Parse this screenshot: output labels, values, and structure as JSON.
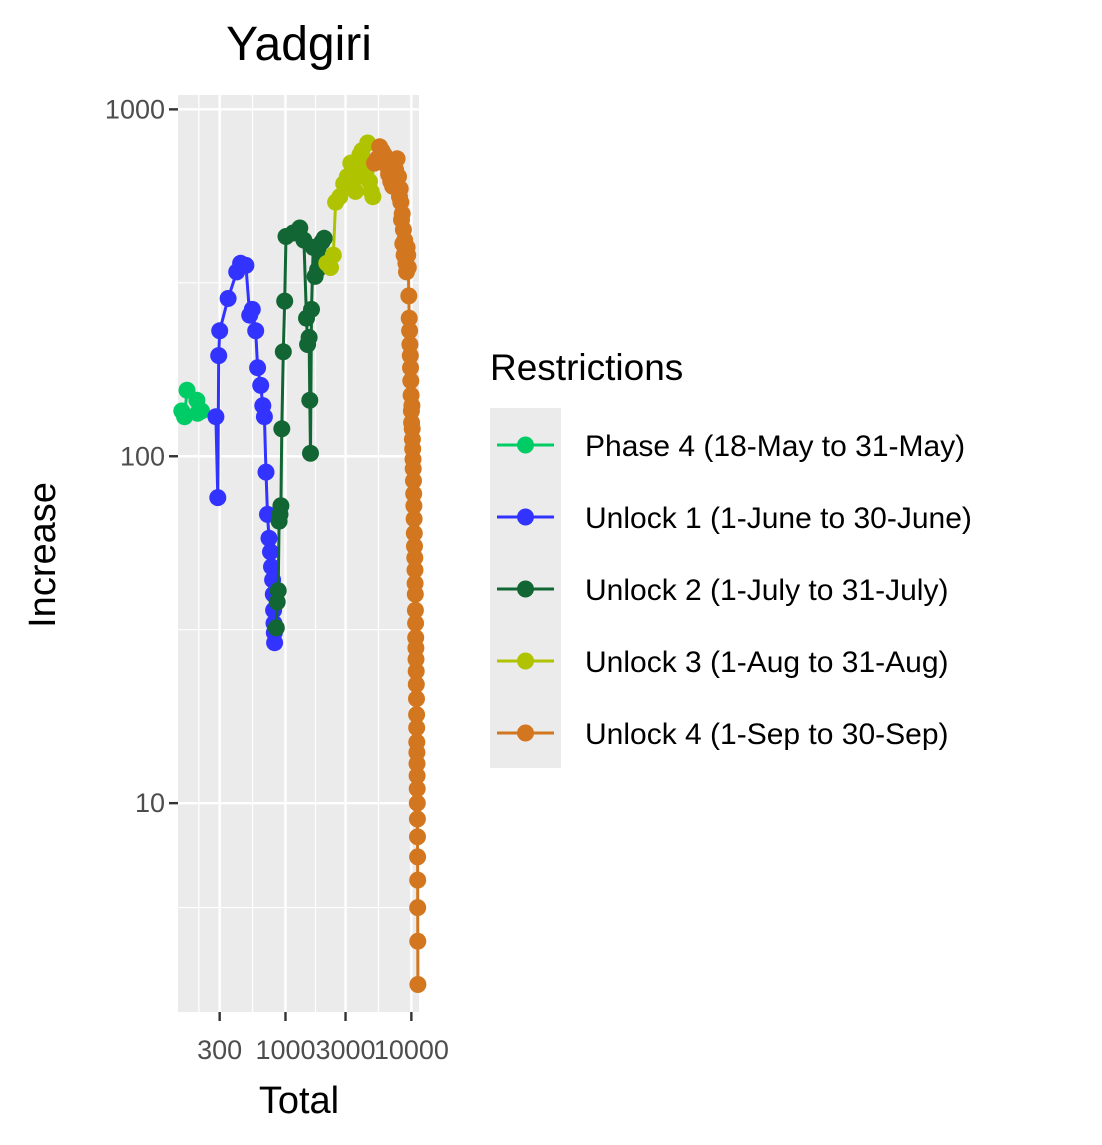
{
  "chart_data": {
    "type": "line",
    "title": "Yadgiri",
    "xlabel": "Total",
    "ylabel": "Increase",
    "x_scale": "log10",
    "y_scale": "log10",
    "xlim": [
      140,
      11500
    ],
    "ylim": [
      2.5,
      1100
    ],
    "x_ticks": [
      300,
      1000,
      3000,
      10000
    ],
    "x_tick_labels": [
      "300",
      "1000",
      "3000",
      "10000"
    ],
    "y_ticks": [
      10,
      100,
      1000
    ],
    "y_tick_labels": [
      "10",
      "100",
      "1000"
    ],
    "grid": true,
    "legend": {
      "title": "Restrictions",
      "position": "right"
    },
    "series": [
      {
        "name": "Phase 4 (18-May to 31-May)",
        "color": "#00CC66",
        "points": [
          [
            150,
            135
          ],
          [
            158,
            130
          ],
          [
            165,
            155
          ],
          [
            198,
            145
          ],
          [
            200,
            133
          ],
          [
            215,
            135
          ]
        ]
      },
      {
        "name": "Unlock 1 (1-June to 30-June)",
        "color": "#3333FF",
        "points": [
          [
            280,
            130
          ],
          [
            290,
            76
          ],
          [
            295,
            195
          ],
          [
            300,
            230
          ],
          [
            350,
            285
          ],
          [
            410,
            340
          ],
          [
            440,
            360
          ],
          [
            485,
            355
          ],
          [
            520,
            255
          ],
          [
            545,
            265
          ],
          [
            580,
            230
          ],
          [
            600,
            180
          ],
          [
            635,
            160
          ],
          [
            660,
            140
          ],
          [
            680,
            130
          ],
          [
            700,
            90
          ],
          [
            720,
            68
          ],
          [
            740,
            58
          ],
          [
            760,
            53
          ],
          [
            775,
            48
          ],
          [
            790,
            44
          ],
          [
            800,
            40
          ],
          [
            805,
            36
          ],
          [
            810,
            33
          ],
          [
            815,
            31
          ],
          [
            820,
            29
          ]
        ]
      },
      {
        "name": "Unlock 2 (1-July to 31-July)",
        "color": "#116633",
        "points": [
          [
            845,
            32
          ],
          [
            860,
            38
          ],
          [
            875,
            41
          ],
          [
            890,
            65
          ],
          [
            905,
            68
          ],
          [
            920,
            72
          ],
          [
            935,
            120
          ],
          [
            960,
            200
          ],
          [
            985,
            280
          ],
          [
            1010,
            430
          ],
          [
            1150,
            440
          ],
          [
            1300,
            455
          ],
          [
            1400,
            420
          ],
          [
            1470,
            250
          ],
          [
            1500,
            210
          ],
          [
            1540,
            220
          ],
          [
            1560,
            145
          ],
          [
            1580,
            102
          ],
          [
            1610,
            265
          ],
          [
            1660,
            400
          ],
          [
            1720,
            330
          ],
          [
            1800,
            345
          ],
          [
            1880,
            380
          ],
          [
            1950,
            415
          ],
          [
            2030,
            425
          ]
        ]
      },
      {
        "name": "Unlock 3 (1-Aug to 31-Aug)",
        "color": "#AFC300",
        "points": [
          [
            2130,
            360
          ],
          [
            2280,
            350
          ],
          [
            2400,
            380
          ],
          [
            2500,
            540
          ],
          [
            2700,
            560
          ],
          [
            2900,
            610
          ],
          [
            3100,
            640
          ],
          [
            3300,
            700
          ],
          [
            3450,
            660
          ],
          [
            3600,
            580
          ],
          [
            3750,
            640
          ],
          [
            3900,
            740
          ],
          [
            4050,
            760
          ],
          [
            4200,
            700
          ],
          [
            4350,
            660
          ],
          [
            4500,
            800
          ],
          [
            4650,
            620
          ],
          [
            4800,
            580
          ],
          [
            4950,
            560
          ]
        ]
      },
      {
        "name": "Unlock 4 (1-Sep to 30-Sep)",
        "color": "#D2771F",
        "points": [
          [
            5100,
            700
          ],
          [
            5350,
            720
          ],
          [
            5600,
            780
          ],
          [
            5850,
            760
          ],
          [
            6100,
            740
          ],
          [
            6350,
            690
          ],
          [
            6600,
            650
          ],
          [
            6850,
            620
          ],
          [
            7100,
            600
          ],
          [
            7300,
            690
          ],
          [
            7500,
            670
          ],
          [
            7700,
            720
          ],
          [
            7900,
            640
          ],
          [
            8050,
            560
          ],
          [
            8150,
            590
          ],
          [
            8250,
            540
          ],
          [
            8350,
            480
          ],
          [
            8450,
            500
          ],
          [
            8550,
            410
          ],
          [
            8650,
            450
          ],
          [
            8750,
            380
          ],
          [
            8850,
            420
          ],
          [
            8950,
            390
          ],
          [
            9050,
            360
          ],
          [
            9150,
            340
          ],
          [
            9250,
            400
          ],
          [
            9350,
            380
          ],
          [
            9450,
            350
          ],
          [
            9550,
            290
          ],
          [
            9620,
            250
          ],
          [
            9680,
            230
          ],
          [
            9740,
            210
          ],
          [
            9800,
            195
          ],
          [
            9850,
            180
          ],
          [
            9900,
            165
          ],
          [
            9950,
            150
          ],
          [
            10000,
            135
          ],
          [
            10050,
            125
          ],
          [
            10100,
            140
          ],
          [
            10150,
            120
          ],
          [
            10200,
            112
          ],
          [
            10250,
            105
          ],
          [
            10300,
            98
          ],
          [
            10350,
            92
          ],
          [
            10400,
            85
          ],
          [
            10440,
            78
          ],
          [
            10480,
            72
          ],
          [
            10520,
            66
          ],
          [
            10560,
            60
          ],
          [
            10600,
            55
          ],
          [
            10640,
            51
          ],
          [
            10680,
            47
          ],
          [
            10710,
            43
          ],
          [
            10740,
            40
          ],
          [
            10770,
            36
          ],
          [
            10800,
            33
          ],
          [
            10830,
            30
          ],
          [
            10860,
            28
          ],
          [
            10890,
            26
          ],
          [
            10920,
            24
          ],
          [
            10950,
            22
          ],
          [
            10980,
            20
          ],
          [
            11000,
            18
          ],
          [
            11020,
            16.5
          ],
          [
            11040,
            15
          ],
          [
            11060,
            14
          ],
          [
            11080,
            13
          ],
          [
            11100,
            12
          ],
          [
            11120,
            11
          ],
          [
            11140,
            10
          ],
          [
            11160,
            9
          ],
          [
            11180,
            8
          ],
          [
            11200,
            7
          ],
          [
            11220,
            6
          ],
          [
            11240,
            5
          ],
          [
            11260,
            4
          ],
          [
            11280,
            3
          ]
        ]
      }
    ]
  }
}
